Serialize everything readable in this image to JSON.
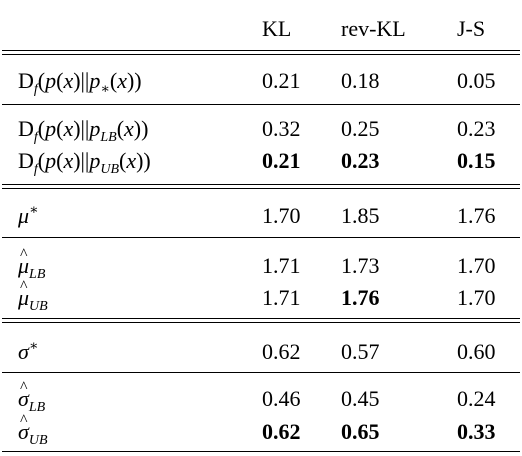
{
  "columns": [
    "KL",
    "rev-KL",
    "J-S"
  ],
  "rows": [
    {
      "label_id": "df_pstar",
      "values": [
        "0.21",
        "0.18",
        "0.05"
      ],
      "bold": [
        false,
        false,
        false
      ]
    },
    {
      "label_id": "df_plb",
      "values": [
        "0.32",
        "0.25",
        "0.23"
      ],
      "bold": [
        false,
        false,
        false
      ]
    },
    {
      "label_id": "df_pub",
      "values": [
        "0.21",
        "0.23",
        "0.15"
      ],
      "bold": [
        true,
        true,
        true
      ]
    },
    {
      "label_id": "mu_star",
      "values": [
        "1.70",
        "1.85",
        "1.76"
      ],
      "bold": [
        false,
        false,
        false
      ]
    },
    {
      "label_id": "mu_lb",
      "values": [
        "1.71",
        "1.73",
        "1.70"
      ],
      "bold": [
        false,
        false,
        false
      ]
    },
    {
      "label_id": "mu_ub",
      "values": [
        "1.71",
        "1.76",
        "1.70"
      ],
      "bold": [
        false,
        true,
        false
      ]
    },
    {
      "label_id": "sigma_star",
      "values": [
        "0.62",
        "0.57",
        "0.60"
      ],
      "bold": [
        false,
        false,
        false
      ]
    },
    {
      "label_id": "sigma_lb",
      "values": [
        "0.46",
        "0.45",
        "0.24"
      ],
      "bold": [
        false,
        false,
        false
      ]
    },
    {
      "label_id": "sigma_ub",
      "values": [
        "0.62",
        "0.65",
        "0.33"
      ],
      "bold": [
        true,
        true,
        true
      ]
    }
  ]
}
